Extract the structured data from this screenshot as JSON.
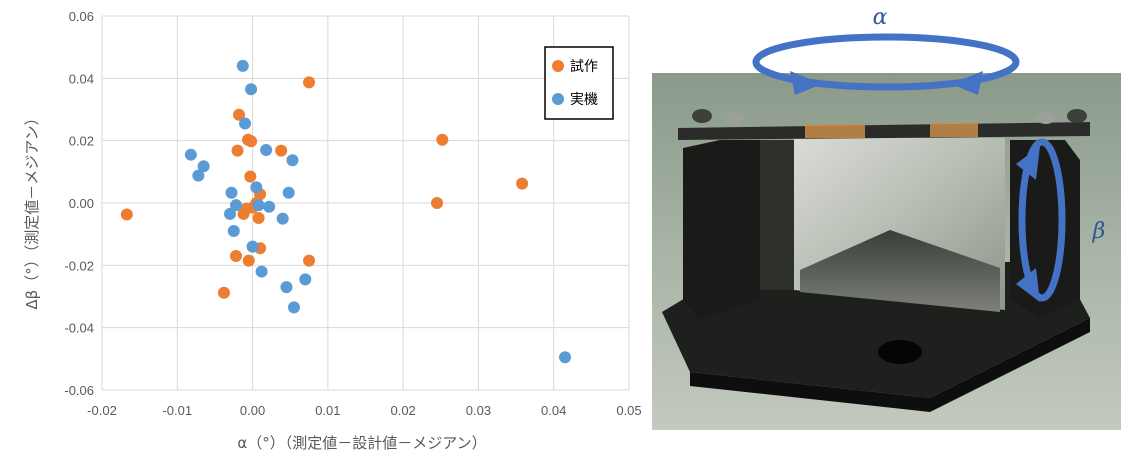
{
  "chart_data": {
    "type": "scatter",
    "xlabel": "α（°）（測定値－設計値－メジアン）",
    "ylabel": "Δβ（°）（測定値－メジアン）",
    "xlim": [
      -0.02,
      0.05
    ],
    "ylim": [
      -0.06,
      0.06
    ],
    "x_ticks": [
      -0.02,
      -0.01,
      0.0,
      0.01,
      0.02,
      0.03,
      0.04,
      0.05
    ],
    "x_tick_labels": [
      "-0.02",
      "-0.01",
      "0.00",
      "0.01",
      "0.02",
      "0.03",
      "0.04",
      "0.05"
    ],
    "y_ticks": [
      -0.06,
      -0.04,
      -0.02,
      0.0,
      0.02,
      0.04,
      0.06
    ],
    "y_tick_labels": [
      "-0.06",
      "-0.04",
      "-0.02",
      "0.00",
      "0.02",
      "0.04",
      "0.06"
    ],
    "grid": true,
    "legend_position": "top-right",
    "series": [
      {
        "name": "試作",
        "color": "#ED7D31",
        "points": [
          [
            -0.0167,
            -0.0037
          ],
          [
            -0.0038,
            -0.0288
          ],
          [
            -0.0022,
            -0.017
          ],
          [
            -0.002,
            0.0168
          ],
          [
            -0.0018,
            0.0283
          ],
          [
            -0.0012,
            -0.0035
          ],
          [
            -0.0008,
            -0.0018
          ],
          [
            -0.0006,
            0.0203
          ],
          [
            -0.0005,
            -0.0185
          ],
          [
            -0.0003,
            0.0085
          ],
          [
            -0.0002,
            0.0198
          ],
          [
            0.0,
            -0.0015
          ],
          [
            0.0005,
            0.0
          ],
          [
            0.0008,
            -0.0048
          ],
          [
            0.001,
            0.0028
          ],
          [
            0.001,
            -0.0145
          ],
          [
            0.0038,
            0.0168
          ],
          [
            0.0075,
            0.0387
          ],
          [
            0.0075,
            -0.0185
          ],
          [
            0.0245,
            0.0
          ],
          [
            0.0252,
            0.0203
          ],
          [
            0.0358,
            0.0062
          ]
        ]
      },
      {
        "name": "実機",
        "color": "#5B9BD5",
        "points": [
          [
            -0.0082,
            0.0155
          ],
          [
            -0.0072,
            0.0088
          ],
          [
            -0.0065,
            0.0118
          ],
          [
            -0.003,
            -0.0035
          ],
          [
            -0.0028,
            0.0033
          ],
          [
            -0.0025,
            -0.009
          ],
          [
            -0.0022,
            -0.0007
          ],
          [
            -0.0013,
            0.044
          ],
          [
            -0.001,
            0.0255
          ],
          [
            -0.0002,
            0.0365
          ],
          [
            0.0,
            -0.014
          ],
          [
            0.0005,
            0.005
          ],
          [
            0.0008,
            -0.0007
          ],
          [
            0.0012,
            -0.022
          ],
          [
            0.0018,
            0.017
          ],
          [
            0.0022,
            -0.0012
          ],
          [
            0.004,
            -0.005
          ],
          [
            0.0045,
            -0.027
          ],
          [
            0.0048,
            0.0033
          ],
          [
            0.0053,
            0.0137
          ],
          [
            0.0055,
            -0.0335
          ],
          [
            0.007,
            -0.0245
          ],
          [
            0.0415,
            -0.0495
          ]
        ]
      }
    ]
  },
  "photo": {
    "alpha_label": "α",
    "beta_label": "β",
    "arrow_color": "#4472C4"
  }
}
